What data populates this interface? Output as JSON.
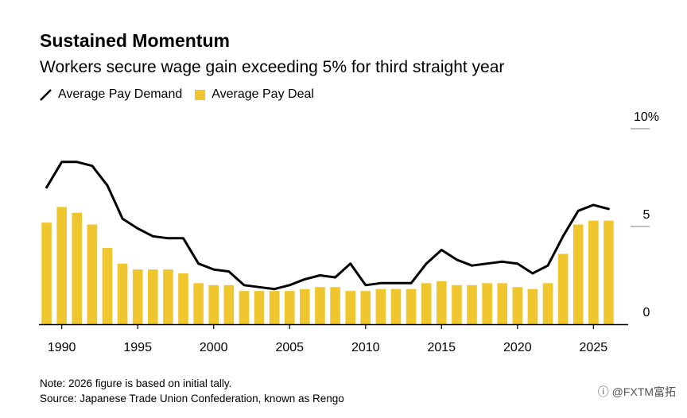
{
  "header": {
    "title": "Sustained Momentum",
    "subtitle": "Workers secure wage gain exceeding 5% for third straight year"
  },
  "legend": {
    "demand_label": "Average Pay Demand",
    "deal_label": "Average Pay Deal"
  },
  "footer": {
    "note": "Note: 2026 figure is based on initial tally.",
    "source": "Source: Japanese Trade Union Confederation, known as Rengo"
  },
  "watermark": "FXTM富拓",
  "colors": {
    "bar": "#f0c62e",
    "line": "#000000",
    "grid": "#9a9a9a",
    "axis": "#000000"
  },
  "chart_data": {
    "type": "bar",
    "title": "Sustained Momentum",
    "subtitle": "Workers secure wage gain exceeding 5% for third straight year",
    "xlabel": "",
    "ylabel": "",
    "y_axis_position": "right",
    "ylim": [
      0,
      10
    ],
    "yticks": [
      0,
      5,
      10
    ],
    "ytick_labels": [
      "0",
      "5",
      "10%"
    ],
    "xticks": [
      1990,
      1995,
      2000,
      2005,
      2010,
      2015,
      2020,
      2025
    ],
    "xtick_labels": [
      "1990",
      "1995",
      "2000",
      "2005",
      "2010",
      "2015",
      "2020",
      "2025"
    ],
    "legend_placement": "top-left",
    "grid": false,
    "categories": [
      1989,
      1990,
      1991,
      1992,
      1993,
      1994,
      1995,
      1996,
      1997,
      1998,
      1999,
      2000,
      2001,
      2002,
      2003,
      2004,
      2005,
      2006,
      2007,
      2008,
      2009,
      2010,
      2011,
      2012,
      2013,
      2014,
      2015,
      2016,
      2017,
      2018,
      2019,
      2020,
      2021,
      2022,
      2023,
      2024,
      2025,
      2026
    ],
    "series": [
      {
        "name": "Average Pay Deal",
        "type": "bar",
        "values": [
          5.2,
          6.0,
          5.7,
          5.1,
          3.9,
          3.1,
          2.8,
          2.8,
          2.8,
          2.6,
          2.1,
          2.0,
          2.0,
          1.7,
          1.7,
          1.7,
          1.7,
          1.8,
          1.9,
          1.9,
          1.7,
          1.7,
          1.8,
          1.8,
          1.8,
          2.1,
          2.2,
          2.0,
          2.0,
          2.1,
          2.1,
          1.9,
          1.8,
          2.1,
          3.6,
          5.1,
          5.3,
          5.3
        ]
      },
      {
        "name": "Average Pay Demand",
        "type": "line",
        "values": [
          7.0,
          8.3,
          8.3,
          8.1,
          7.1,
          5.4,
          4.9,
          4.5,
          4.4,
          4.4,
          3.1,
          2.8,
          2.7,
          2.0,
          1.9,
          1.8,
          2.0,
          2.3,
          2.5,
          2.4,
          3.1,
          2.0,
          2.1,
          2.1,
          2.1,
          3.1,
          3.8,
          3.3,
          3.0,
          3.1,
          3.2,
          3.1,
          2.6,
          3.0,
          4.5,
          5.8,
          6.1,
          5.9
        ]
      }
    ]
  }
}
